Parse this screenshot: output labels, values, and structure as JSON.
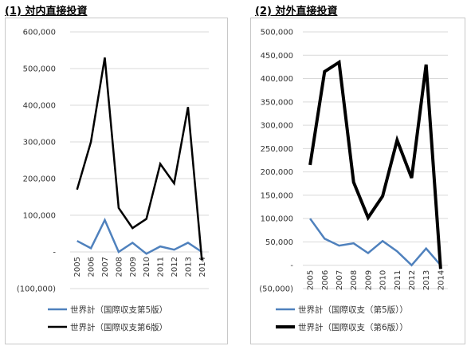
{
  "charts": [
    {
      "panel_title": "(1) 対内直接投資",
      "chart_data": {
        "type": "line",
        "title": "(1) 対内直接投資",
        "x": [
          "2005",
          "2006",
          "2007",
          "2008",
          "2009",
          "2010",
          "2011",
          "2012",
          "2013",
          "2014"
        ],
        "ylim": [
          -100000,
          600000
        ],
        "yticks": [
          -100000,
          0,
          100000,
          200000,
          300000,
          400000,
          500000,
          600000
        ],
        "ytick_labels": [
          "(100,000)",
          "-",
          "100,000",
          "200,000",
          "300,000",
          "400,000",
          "500,000",
          "600,000"
        ],
        "grid": true,
        "legend_position": "bottom",
        "series": [
          {
            "name": "世界計（国際収支第5版）",
            "color": "#4f81bd",
            "width": 2.5,
            "values": [
              30000,
              10000,
              87000,
              0,
              25000,
              -5000,
              15000,
              6000,
              25000,
              0
            ]
          },
          {
            "name": "世界計（国際収支第6版）",
            "color": "#000000",
            "width": 2.5,
            "values": [
              170000,
              300000,
              530000,
              120000,
              65000,
              90000,
              240000,
              187000,
              395000,
              -22000
            ]
          }
        ]
      }
    },
    {
      "panel_title": "(2) 対外直接投資",
      "chart_data": {
        "type": "line",
        "title": "(2) 対外直接投資",
        "x": [
          "2005",
          "2006",
          "2007",
          "2008",
          "2009",
          "2010",
          "2011",
          "2012",
          "2013",
          "2014"
        ],
        "ylim": [
          -50000,
          500000
        ],
        "yticks": [
          -50000,
          0,
          50000,
          100000,
          150000,
          200000,
          250000,
          300000,
          350000,
          400000,
          450000,
          500000
        ],
        "ytick_labels": [
          "(50,000)",
          "-",
          "50,000",
          "100,000",
          "150,000",
          "200,000",
          "250,000",
          "300,000",
          "350,000",
          "400,000",
          "450,000",
          "500,000"
        ],
        "grid": true,
        "legend_position": "bottom",
        "series": [
          {
            "name": "世界計（国際収支（第5版））",
            "color": "#4f81bd",
            "width": 2.5,
            "values": [
              100000,
              57000,
              42000,
              47000,
              26000,
              52000,
              30000,
              0,
              36000,
              0
            ]
          },
          {
            "name": "世界計（国際収支（第6版））",
            "color": "#000000",
            "width": 4,
            "values": [
              215000,
              415000,
              435000,
              178000,
              102000,
              148000,
              268000,
              187000,
              430000,
              -8000
            ]
          }
        ]
      }
    }
  ]
}
